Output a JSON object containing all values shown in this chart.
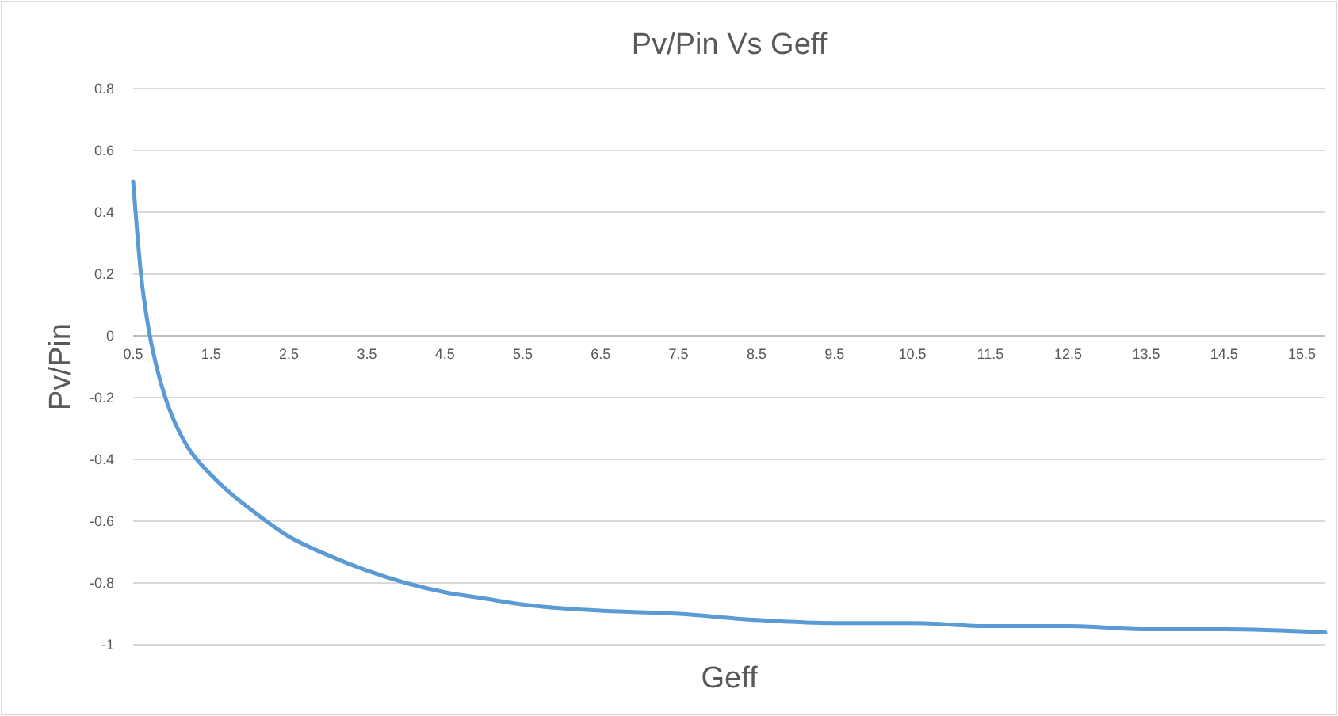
{
  "chart_data": {
    "type": "line",
    "title": "Pv/Pin Vs Geff",
    "xlabel": "Geff",
    "ylabel": "Pv/Pin",
    "x": [
      0.5,
      0.55,
      0.6,
      0.7,
      0.8,
      0.9,
      1.0,
      1.2,
      1.5,
      1.75,
      2,
      2.5,
      3,
      3.5,
      4,
      4.5,
      5,
      5.5,
      6.5,
      7.5,
      8.5,
      9.5,
      10.5,
      11.5,
      12.5,
      13.5,
      14.5,
      15.8
    ],
    "series": [
      {
        "color": "#5b9bd5",
        "values": [
          0.5,
          0.34,
          0.2,
          0.02,
          -0.1,
          -0.19,
          -0.26,
          -0.36,
          -0.45,
          -0.51,
          -0.56,
          -0.65,
          -0.71,
          -0.76,
          -0.8,
          -0.83,
          -0.85,
          -0.87,
          -0.89,
          -0.9,
          -0.92,
          -0.93,
          -0.93,
          -0.94,
          -0.94,
          -0.95,
          -0.95,
          -0.96
        ]
      }
    ],
    "xlim": [
      0.5,
      15.8
    ],
    "xticks": [
      0.5,
      1.5,
      2.5,
      3.5,
      4.5,
      5.5,
      6.5,
      7.5,
      8.5,
      9.5,
      10.5,
      11.5,
      12.5,
      13.5,
      14.5,
      15.5
    ],
    "ylim": [
      -1,
      0.8
    ],
    "yticks": [
      -1,
      -0.8,
      -0.6,
      -0.4,
      -0.2,
      0,
      0.2,
      0.4,
      0.6,
      0.8
    ],
    "grid": "y",
    "marker": "none",
    "line_style": "solid"
  }
}
